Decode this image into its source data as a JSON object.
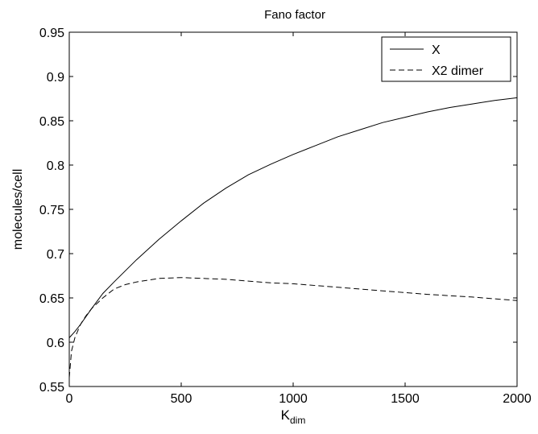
{
  "chart_data": {
    "type": "line",
    "title": "Fano factor",
    "xlabel": "K",
    "xlabel_sub": "dim",
    "ylabel": "molecules/cell",
    "xlim": [
      0,
      2000
    ],
    "ylim": [
      0.55,
      0.95
    ],
    "xticks": [
      0,
      500,
      1000,
      1500,
      2000
    ],
    "yticks": [
      0.55,
      0.6,
      0.65,
      0.7,
      0.75,
      0.8,
      0.85,
      0.9,
      0.95
    ],
    "grid": false,
    "legend_position": "top-right",
    "series": [
      {
        "name": "X",
        "style": "solid",
        "color": "#000000",
        "x": [
          0,
          25,
          50,
          100,
          150,
          200,
          300,
          400,
          500,
          600,
          700,
          800,
          900,
          1000,
          1100,
          1200,
          1300,
          1400,
          1500,
          1600,
          1700,
          1800,
          1900,
          2000
        ],
        "y": [
          0.605,
          0.612,
          0.62,
          0.638,
          0.655,
          0.668,
          0.693,
          0.716,
          0.737,
          0.757,
          0.774,
          0.789,
          0.801,
          0.812,
          0.822,
          0.832,
          0.84,
          0.848,
          0.854,
          0.86,
          0.865,
          0.869,
          0.873,
          0.876
        ]
      },
      {
        "name": "X2 dimer",
        "style": "dashed",
        "color": "#000000",
        "x": [
          0,
          10,
          25,
          50,
          75,
          100,
          150,
          200,
          250,
          300,
          400,
          500,
          600,
          700,
          800,
          900,
          1000,
          1200,
          1400,
          1600,
          1800,
          1900,
          2000
        ],
        "y": [
          0.56,
          0.59,
          0.605,
          0.62,
          0.63,
          0.638,
          0.65,
          0.66,
          0.665,
          0.668,
          0.672,
          0.673,
          0.672,
          0.671,
          0.669,
          0.667,
          0.666,
          0.662,
          0.658,
          0.654,
          0.651,
          0.649,
          0.647
        ]
      }
    ]
  }
}
